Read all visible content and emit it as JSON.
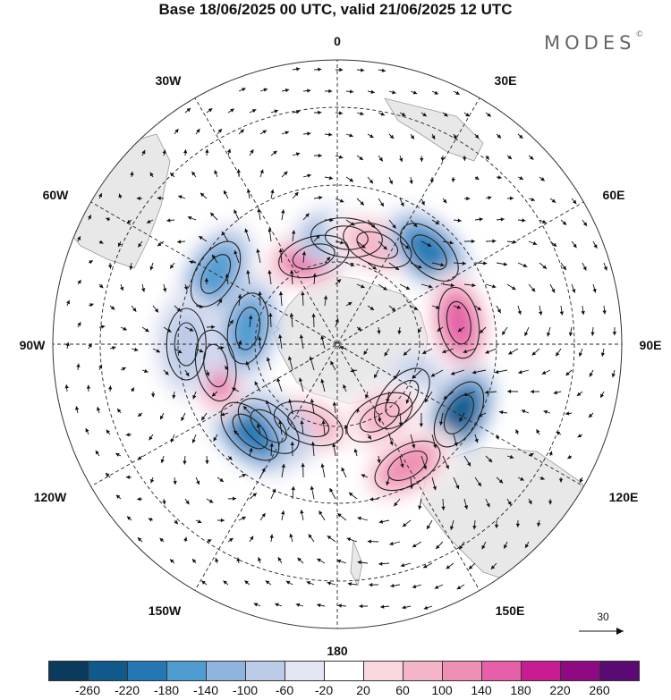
{
  "title": "Base 18/06/2025 00 UTC, valid 21/06/2025 12 UTC",
  "logo": {
    "text": "MODES",
    "mark": "©"
  },
  "longitude_labels": {
    "top": "0",
    "bottom": "180",
    "left": "90W",
    "right": "90E",
    "w30": "30W",
    "w60": "60W",
    "w120": "120W",
    "w150": "150W",
    "e30": "30E",
    "e60": "60E",
    "e120": "120E",
    "e150": "150E"
  },
  "reference_vector": {
    "label": "30"
  },
  "colorbar": {
    "colors": [
      "#0b3b5c",
      "#0f5a8a",
      "#2378b3",
      "#4f9cd0",
      "#8fb5df",
      "#bccbe8",
      "#e3e5f3",
      "#ffffff",
      "#f9d8df",
      "#f5b5c8",
      "#ef8fb4",
      "#e560a8",
      "#c81d90",
      "#8e0a82",
      "#5a0a73"
    ],
    "tick_labels": [
      "-260",
      "-220",
      "-180",
      "-140",
      "-100",
      "-60",
      "-20",
      "20",
      "60",
      "100",
      "140",
      "180",
      "220",
      "260"
    ]
  },
  "anomalies": [
    {
      "lat": -60,
      "lon": -15,
      "value": 160
    },
    {
      "lat": -55,
      "lon": 5,
      "value": -140
    },
    {
      "lat": -55,
      "lon": 22,
      "value": 110
    },
    {
      "lat": -48,
      "lon": 45,
      "value": -170
    },
    {
      "lat": -50,
      "lon": 80,
      "value": 190
    },
    {
      "lat": -45,
      "lon": 120,
      "value": -200
    },
    {
      "lat": -45,
      "lon": 150,
      "value": 130
    },
    {
      "lat": -62,
      "lon": 130,
      "value": -110
    },
    {
      "lat": -62,
      "lon": 150,
      "value": 90
    },
    {
      "lat": -62,
      "lon": -160,
      "value": 110
    },
    {
      "lat": -55,
      "lon": -140,
      "value": -120
    },
    {
      "lat": -50,
      "lon": -135,
      "value": -170
    },
    {
      "lat": -50,
      "lon": -100,
      "value": 170
    },
    {
      "lat": -60,
      "lon": -80,
      "value": -140
    },
    {
      "lat": -45,
      "lon": -60,
      "value": -140
    },
    {
      "lat": -42,
      "lon": -90,
      "value": -70
    }
  ]
}
